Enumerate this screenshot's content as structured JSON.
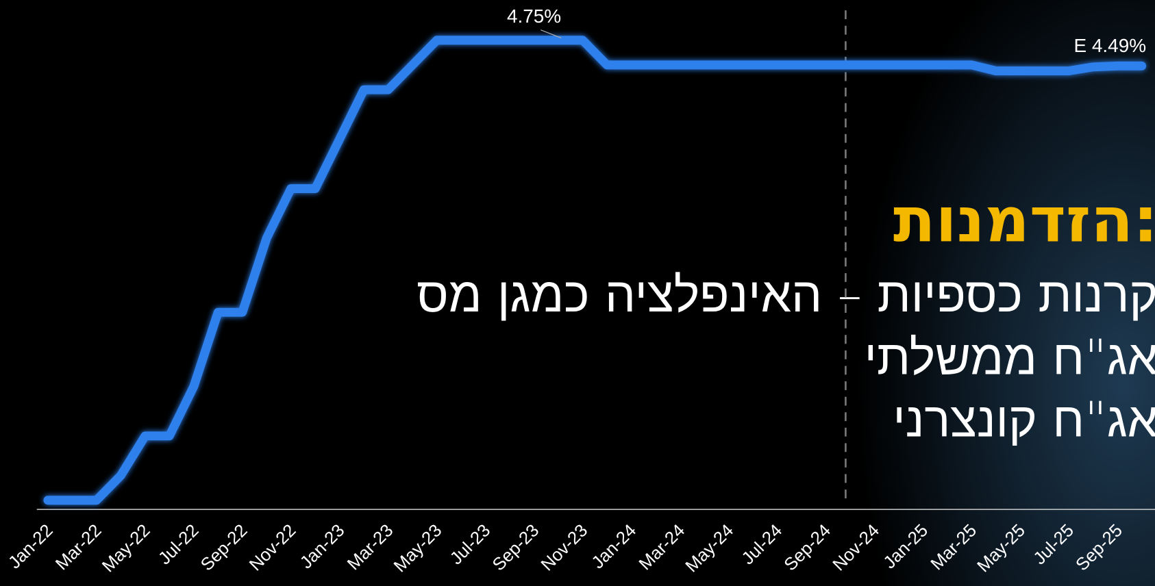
{
  "chart_data": {
    "type": "line",
    "categories": [
      "Jan-22",
      null,
      "Mar-22",
      null,
      "May-22",
      null,
      "Jul-22",
      null,
      "Sep-22",
      null,
      "Nov-22",
      null,
      "Jan-23",
      null,
      "Mar-23",
      null,
      "May-23",
      null,
      "Jul-23",
      null,
      "Sep-23",
      null,
      "Nov-23",
      null,
      "Jan-24",
      null,
      "Mar-24",
      null,
      "May-24",
      null,
      "Jul-24",
      null,
      "Sep-24",
      null,
      "Nov-24",
      null,
      "Jan-25",
      null,
      "Mar-25",
      null,
      "May-25",
      null,
      "Jul-25",
      null,
      "Sep-25",
      null
    ],
    "series": [
      {
        "color": "#2f80ed",
        "values": [
          0.1,
          0.1,
          0.1,
          0.35,
          0.75,
          0.75,
          1.25,
          2.0,
          2.0,
          2.75,
          3.25,
          3.25,
          3.75,
          4.25,
          4.25,
          4.5,
          4.75,
          4.75,
          4.75,
          4.75,
          4.75,
          4.75,
          4.75,
          4.5,
          4.5,
          4.5,
          4.5,
          4.5,
          4.5,
          4.5,
          4.5,
          4.5,
          4.5,
          4.5,
          4.5,
          4.5,
          4.5,
          4.5,
          4.5,
          4.44,
          4.44,
          4.44,
          4.44,
          4.48,
          4.49,
          4.49
        ],
        "value_labels": [
          null,
          null,
          null,
          null,
          null,
          null,
          null,
          null,
          null,
          null,
          null,
          null,
          null,
          null,
          null,
          null,
          null,
          null,
          null,
          null,
          null,
          "4.75%",
          null,
          null,
          null,
          null,
          null,
          null,
          null,
          null,
          null,
          null,
          null,
          null,
          null,
          null,
          null,
          null,
          null,
          null,
          null,
          null,
          null,
          null,
          null,
          "E 4.49%"
        ]
      }
    ],
    "ylim": [
      0,
      5
    ]
  },
  "overlay": {
    "title": "הזדמנות:",
    "lines": [
      "קרנות כספיות – האינפלציה כמגן מס",
      "אג\"ח ממשלתי",
      "אג\"ח קונצרני"
    ]
  }
}
